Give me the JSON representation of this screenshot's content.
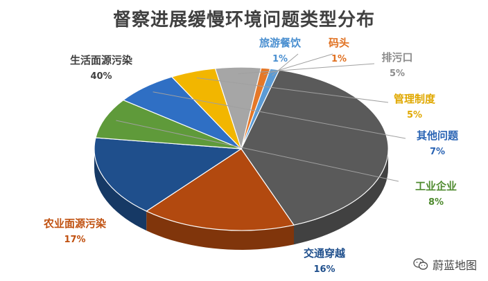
{
  "chart_data": {
    "type": "pie",
    "title": "督察进展缓慢环境问题类型分布",
    "slices": [
      {
        "label": "生活面源污染",
        "value": 40,
        "pct_label": "40%",
        "color": "#5a5a5a",
        "label_color": "#404040"
      },
      {
        "label": "农业面源污染",
        "value": 17,
        "pct_label": "17%",
        "color": "#b2490f",
        "label_color": "#c0500f"
      },
      {
        "label": "交通穿越",
        "value": 16,
        "pct_label": "16%",
        "color": "#1f4f8c",
        "label_color": "#1f4f8c"
      },
      {
        "label": "工业企业",
        "value": 8,
        "pct_label": "8%",
        "color": "#5f9a3a",
        "label_color": "#4e8a2e"
      },
      {
        "label": "其他问题",
        "value": 7,
        "pct_label": "7%",
        "color": "#2f6fc4",
        "label_color": "#2a64b4"
      },
      {
        "label": "管理制度",
        "value": 5,
        "pct_label": "5%",
        "color": "#f2b600",
        "label_color": "#e0a800"
      },
      {
        "label": "排污口",
        "value": 5,
        "pct_label": "5%",
        "color": "#a6a6a6",
        "label_color": "#8c8c8c"
      },
      {
        "label": "码头",
        "value": 1,
        "pct_label": "1%",
        "color": "#e57828",
        "label_color": "#e07020"
      },
      {
        "label": "旅游餐饮",
        "value": 1,
        "pct_label": "1%",
        "color": "#5b9bd5",
        "label_color": "#4a8fd0"
      }
    ]
  },
  "watermark": {
    "text": "蔚蓝地图",
    "icon": "wechat-icon"
  }
}
